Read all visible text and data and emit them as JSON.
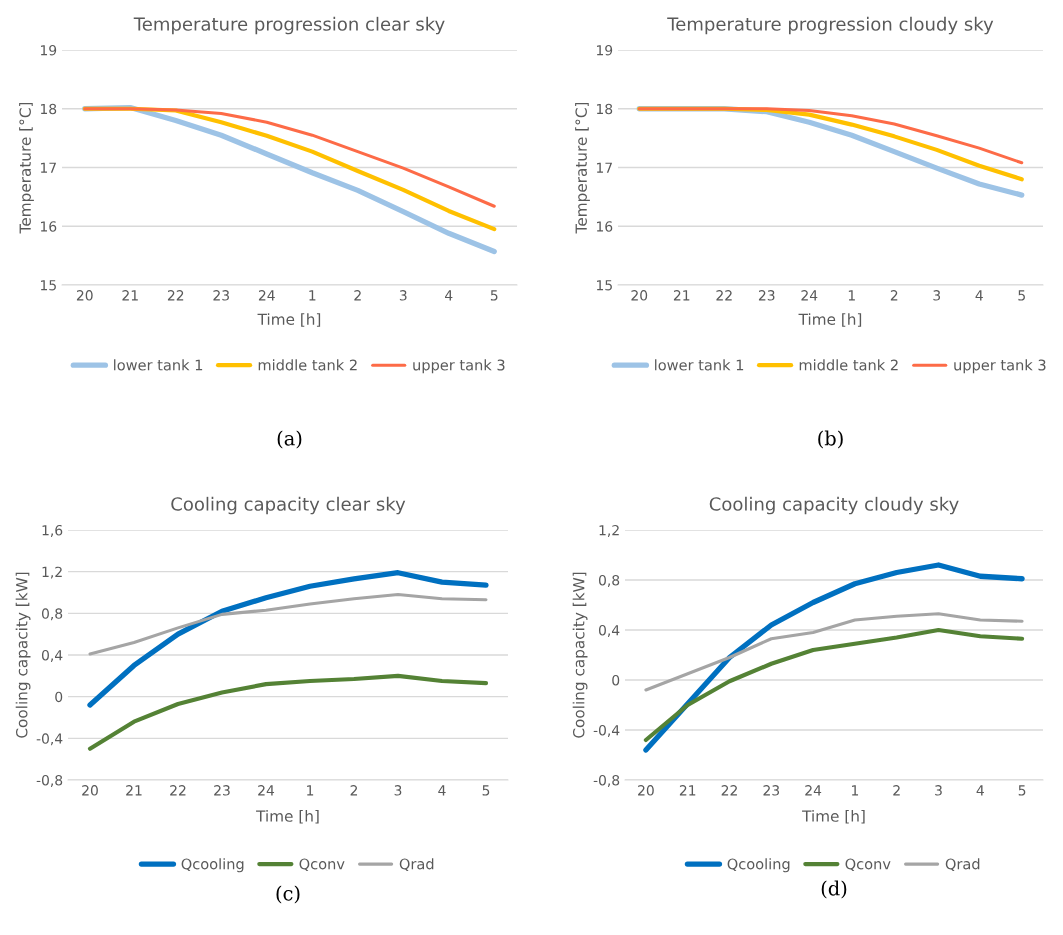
{
  "chart_data": [
    {
      "type": "line",
      "title": "Temperature progression clear sky",
      "xlabel": "Time [h]",
      "ylabel": "Temperature [°C]",
      "categories": [
        "20",
        "21",
        "22",
        "23",
        "24",
        "1",
        "2",
        "3",
        "4",
        "5"
      ],
      "ylim": [
        15,
        19
      ],
      "yticks": [
        15,
        16,
        17,
        18,
        19
      ],
      "grid": "y",
      "legend": "bottom",
      "annotations": [
        "(a)"
      ],
      "series": [
        {
          "name": "lower tank 1",
          "color": "#9dc3e6",
          "values": [
            18,
            18.02,
            17.8,
            17.55,
            17.23,
            16.91,
            16.61,
            16.25,
            15.88,
            15.57
          ]
        },
        {
          "name": "middle tank 2",
          "color": "#ffc000",
          "values": [
            18,
            18,
            17.97,
            17.77,
            17.54,
            17.27,
            16.94,
            16.62,
            16.26,
            15.95
          ]
        },
        {
          "name": "upper tank 3",
          "color": "#fd6b47",
          "values": [
            18,
            18,
            17.98,
            17.92,
            17.77,
            17.55,
            17.27,
            16.99,
            16.67,
            16.34
          ]
        }
      ]
    },
    {
      "type": "line",
      "title": "Temperature progression cloudy sky",
      "xlabel": "Time [h]",
      "ylabel": "Temperature [°C]",
      "categories": [
        "20",
        "21",
        "22",
        "23",
        "24",
        "1",
        "2",
        "3",
        "4",
        "5"
      ],
      "ylim": [
        15,
        19
      ],
      "yticks": [
        15,
        16,
        17,
        18,
        19
      ],
      "grid": "y",
      "legend": "bottom",
      "annotations": [
        "(b)"
      ],
      "series": [
        {
          "name": "lower tank 1",
          "color": "#9dc3e6",
          "values": [
            18,
            18,
            18,
            17.95,
            17.77,
            17.55,
            17.27,
            16.99,
            16.72,
            16.53
          ]
        },
        {
          "name": "middle tank 2",
          "color": "#ffc000",
          "values": [
            18,
            18,
            18,
            17.98,
            17.9,
            17.73,
            17.53,
            17.3,
            17.03,
            16.8
          ]
        },
        {
          "name": "upper tank 3",
          "color": "#fd6b47",
          "values": [
            18,
            18,
            18,
            18,
            17.97,
            17.88,
            17.74,
            17.54,
            17.33,
            17.08
          ]
        }
      ]
    },
    {
      "type": "line",
      "title": "Cooling capacity clear sky",
      "xlabel": "Time [h]",
      "ylabel": "Cooling capacity [kW]",
      "categories": [
        "20",
        "21",
        "22",
        "23",
        "24",
        "1",
        "2",
        "3",
        "4",
        "5"
      ],
      "ylim": [
        -0.8,
        1.6
      ],
      "yticks": [
        {
          "value": -0.8,
          "label": "-0,8"
        },
        {
          "value": -0.4,
          "label": "-0,4"
        },
        0,
        {
          "value": 0.4,
          "label": "0,4"
        },
        {
          "value": 0.8,
          "label": "0,8"
        },
        {
          "value": 1.2,
          "label": "1,2"
        },
        {
          "value": 1.6,
          "label": "1,6"
        }
      ],
      "grid": "y",
      "legend": "bottom",
      "annotations": [
        "(c)"
      ],
      "series": [
        {
          "name": "Qcooling",
          "color": "#0070c0",
          "values": [
            -0.08,
            0.3,
            0.6,
            0.82,
            0.95,
            1.06,
            1.13,
            1.19,
            1.1,
            1.07
          ]
        },
        {
          "name": "Qconv",
          "color": "#548235",
          "values": [
            -0.5,
            -0.24,
            -0.07,
            0.04,
            0.12,
            0.15,
            0.17,
            0.2,
            0.15,
            0.13
          ]
        },
        {
          "name": "Qrad",
          "color": "#a5a5a5",
          "values": [
            0.41,
            0.52,
            0.66,
            0.79,
            0.83,
            0.89,
            0.94,
            0.98,
            0.94,
            0.93
          ]
        }
      ]
    },
    {
      "type": "line",
      "title": "Cooling capacity cloudy sky",
      "xlabel": "Time [h]",
      "ylabel": "Cooling capacity [kW]",
      "categories": [
        "20",
        "21",
        "22",
        "23",
        "24",
        "1",
        "2",
        "3",
        "4",
        "5"
      ],
      "ylim": [
        -0.8,
        1.2
      ],
      "yticks": [
        {
          "value": -0.8,
          "label": "-0,8"
        },
        {
          "value": -0.4,
          "label": "-0,4"
        },
        0,
        {
          "value": 0.4,
          "label": "0,4"
        },
        {
          "value": 0.8,
          "label": "0,8"
        },
        {
          "value": 1.2,
          "label": "1,2"
        }
      ],
      "grid": "y",
      "legend": "bottom",
      "annotations": [
        "(d)"
      ],
      "series": [
        {
          "name": "Qcooling",
          "color": "#0070c0",
          "values": [
            -0.56,
            -0.19,
            0.18,
            0.44,
            0.62,
            0.77,
            0.86,
            0.92,
            0.83,
            0.81
          ]
        },
        {
          "name": "Qconv",
          "color": "#548235",
          "values": [
            -0.48,
            -0.2,
            -0.01,
            0.13,
            0.24,
            0.29,
            0.34,
            0.4,
            0.35,
            0.33
          ]
        },
        {
          "name": "Qrad",
          "color": "#a5a5a5",
          "values": [
            -0.08,
            0.05,
            0.18,
            0.33,
            0.38,
            0.48,
            0.51,
            0.53,
            0.48,
            0.47
          ]
        }
      ]
    }
  ]
}
